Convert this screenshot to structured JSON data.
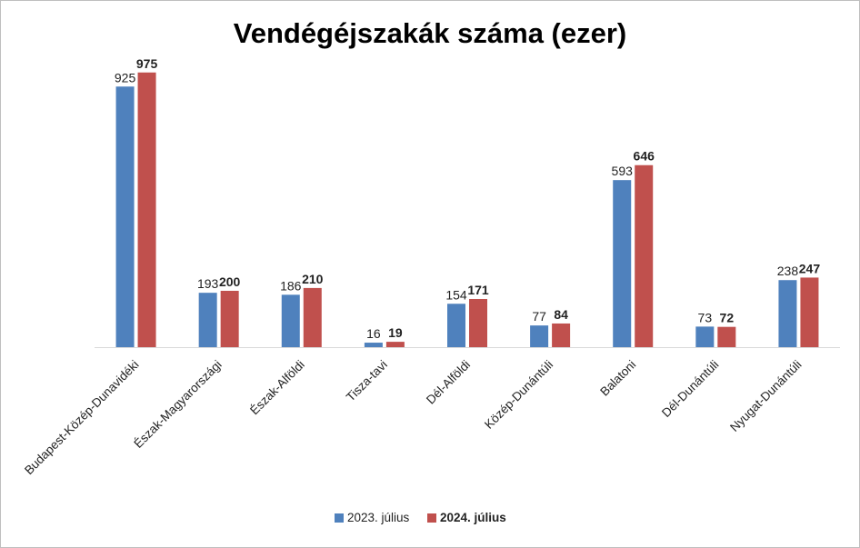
{
  "chart_data": {
    "type": "bar",
    "title": "Vendégéjszakák száma (ezer)",
    "categories": [
      "Budapest-Közép-Dunavidéki",
      "Észak-Magyarországi",
      "Észak-Alföldi",
      "Tisza-tavi",
      "Dél-Alföldi",
      "Közép-Dunántúli",
      "Balatoni",
      "Dél-Dunántúli",
      "Nyugat-Dunántúli"
    ],
    "series": [
      {
        "name": "2023. július",
        "color": "#4f81bd",
        "values": [
          925,
          193,
          186,
          16,
          154,
          77,
          593,
          73,
          238
        ],
        "label_bold": false
      },
      {
        "name": "2024. július",
        "color": "#c0504d",
        "values": [
          975,
          200,
          210,
          19,
          171,
          84,
          646,
          72,
          247
        ],
        "label_bold": true
      }
    ],
    "ylim": [
      0,
      1000
    ],
    "xlabel": "",
    "ylabel": "",
    "grid": false,
    "legend": "bottom-center"
  }
}
